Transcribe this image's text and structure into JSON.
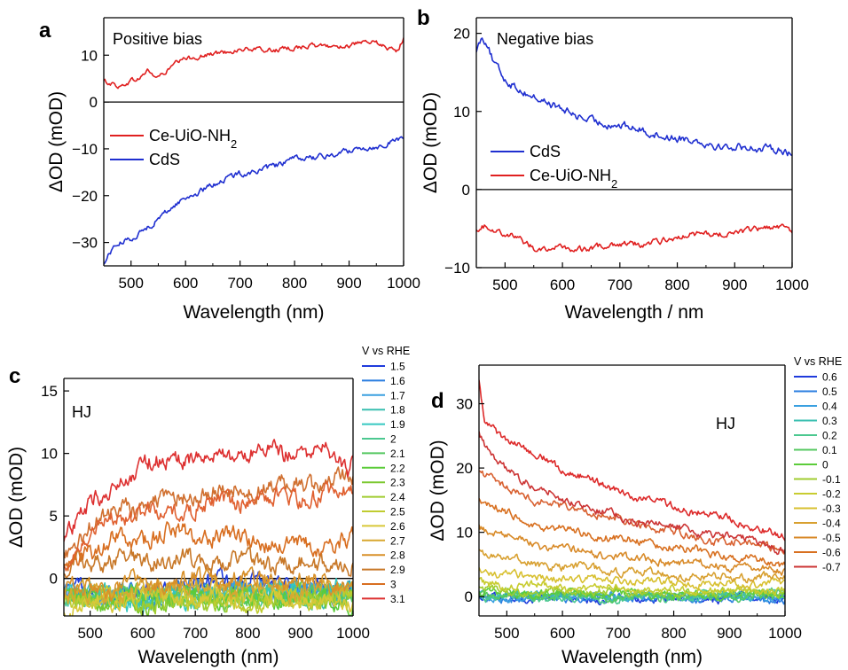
{
  "colors": {
    "red": "#e02020",
    "blue": "#1f2fd0"
  },
  "chart_data": [
    {
      "panel": "a",
      "type": "line",
      "annotation": "Positive bias",
      "xlabel": "Wavelength (nm)",
      "ylabel": "ΔOD (mOD)",
      "xlim": [
        450,
        1000
      ],
      "ylim": [
        -35,
        18
      ],
      "xticks": [
        500,
        600,
        700,
        800,
        900,
        1000
      ],
      "yticks": [
        -30,
        -20,
        -10,
        0,
        10
      ],
      "zero_line": true,
      "legend": {
        "position": "middle-left",
        "size": "large"
      },
      "series": [
        {
          "name": "Ce-UiO-NH",
          "sub": "2",
          "color": "#e02020",
          "noise": 0.25,
          "x": [
            450,
            465,
            480,
            500,
            515,
            530,
            545,
            560,
            580,
            600,
            650,
            700,
            750,
            800,
            850,
            900,
            950,
            975,
            990,
            1000
          ],
          "y": [
            4.5,
            3.8,
            3,
            4.5,
            5,
            7,
            5.5,
            6,
            8,
            9,
            10.5,
            11,
            11.2,
            11.5,
            12,
            12.2,
            12.5,
            11.5,
            11,
            14
          ]
        },
        {
          "name": "CdS",
          "color": "#1f2fd0",
          "noise": 0.3,
          "x": [
            450,
            460,
            470,
            500,
            550,
            600,
            650,
            700,
            750,
            800,
            850,
            900,
            950,
            970,
            1000
          ],
          "y": [
            -35,
            -32.5,
            -31,
            -29,
            -25,
            -20.5,
            -17.5,
            -15.5,
            -14,
            -12.5,
            -11.5,
            -10.5,
            -9.5,
            -8.5,
            -7.5
          ]
        }
      ]
    },
    {
      "panel": "b",
      "type": "line",
      "annotation": "Negative bias",
      "xlabel": "Wavelength / nm",
      "ylabel": "ΔOD (mOD)",
      "xlim": [
        450,
        1000
      ],
      "ylim": [
        -10,
        22
      ],
      "xticks": [
        500,
        600,
        700,
        800,
        900,
        1000
      ],
      "yticks": [
        -10,
        0,
        10,
        20
      ],
      "zero_line": true,
      "legend": {
        "position": "middle-left",
        "size": "large"
      },
      "series": [
        {
          "name": "CdS",
          "color": "#1f2fd0",
          "noise": 0.25,
          "x": [
            450,
            460,
            470,
            480,
            500,
            520,
            550,
            600,
            650,
            700,
            750,
            800,
            850,
            900,
            950,
            980,
            1000
          ],
          "y": [
            18,
            19.5,
            18.5,
            16,
            14,
            13.2,
            12,
            10,
            9,
            8,
            7.5,
            6.5,
            6,
            5.5,
            5,
            5.5,
            4.5
          ]
        },
        {
          "name": "Ce-UiO-NH",
          "sub": "2",
          "color": "#e02020",
          "noise": 0.2,
          "x": [
            450,
            470,
            490,
            510,
            530,
            550,
            570,
            600,
            650,
            700,
            750,
            800,
            850,
            900,
            950,
            975,
            1000
          ],
          "y": [
            -5,
            -4.8,
            -5.5,
            -5.5,
            -6.5,
            -7.5,
            -7.7,
            -7.5,
            -7.5,
            -7,
            -6.8,
            -6.2,
            -5.5,
            -5.8,
            -5,
            -4.5,
            -5.3
          ]
        }
      ]
    },
    {
      "panel": "c",
      "type": "line",
      "annotation": "HJ",
      "xlabel": "Wavelength (nm)",
      "ylabel": "ΔOD (mOD)",
      "xlim": [
        450,
        1000
      ],
      "ylim": [
        -3,
        16
      ],
      "xticks": [
        500,
        600,
        700,
        800,
        900,
        1000
      ],
      "yticks": [
        0,
        5,
        10,
        15
      ],
      "zero_line": true,
      "legend": {
        "title": "V vs RHE",
        "position": "right",
        "size": "small"
      },
      "series": [
        {
          "name": "1.5",
          "color": "#1f3bdc",
          "noise": 0.35,
          "x": [
            450,
            600,
            750,
            1000
          ],
          "y": [
            -1,
            -1.3,
            0,
            -1
          ]
        },
        {
          "name": "1.6",
          "color": "#2a7ee0",
          "noise": 0.35,
          "x": [
            450,
            600,
            750,
            1000
          ],
          "y": [
            -1.2,
            -1.5,
            -0.5,
            -1.2
          ]
        },
        {
          "name": "1.7",
          "color": "#3aa0e0",
          "noise": 0.35,
          "x": [
            450,
            600,
            750,
            1000
          ],
          "y": [
            -1,
            -1.8,
            -0.8,
            -1
          ]
        },
        {
          "name": "1.8",
          "color": "#3abfb0",
          "noise": 0.35,
          "x": [
            450,
            600,
            750,
            1000
          ],
          "y": [
            -1.5,
            -1.5,
            -1,
            -1.5
          ]
        },
        {
          "name": "1.9",
          "color": "#35c8c0",
          "noise": 0.35,
          "x": [
            450,
            600,
            750,
            1000
          ],
          "y": [
            -1,
            -2,
            -1.2,
            -0.8
          ]
        },
        {
          "name": "2",
          "color": "#4cc890",
          "noise": 0.35,
          "x": [
            450,
            600,
            750,
            1000
          ],
          "y": [
            -1.3,
            -1.7,
            -1.5,
            -1.5
          ]
        },
        {
          "name": "2.1",
          "color": "#55c860",
          "noise": 0.35,
          "x": [
            450,
            600,
            750,
            1000
          ],
          "y": [
            -1.5,
            -1.2,
            -1.8,
            -1.2
          ]
        },
        {
          "name": "2.2",
          "color": "#5ccc3a",
          "noise": 0.35,
          "x": [
            450,
            600,
            750,
            1000
          ],
          "y": [
            -1.8,
            -1.5,
            -1.5,
            -1.8
          ]
        },
        {
          "name": "2.3",
          "color": "#7cc830",
          "noise": 0.35,
          "x": [
            450,
            600,
            750,
            1000
          ],
          "y": [
            -1.2,
            -2,
            -1.2,
            -1.5
          ]
        },
        {
          "name": "2.4",
          "color": "#a0cc30",
          "noise": 0.35,
          "x": [
            450,
            600,
            750,
            1000
          ],
          "y": [
            -1.5,
            -1.8,
            -2,
            -1.2
          ]
        },
        {
          "name": "2.5",
          "color": "#c0cc30",
          "noise": 0.35,
          "x": [
            450,
            600,
            750,
            1000
          ],
          "y": [
            -2,
            -1.5,
            -1.8,
            -1.5
          ]
        },
        {
          "name": "2.6",
          "color": "#d8c838",
          "noise": 0.35,
          "x": [
            450,
            600,
            750,
            1000
          ],
          "y": [
            -2.5,
            -1.2,
            -1.5,
            -2
          ]
        },
        {
          "name": "2.7",
          "color": "#d8a830",
          "noise": 0.35,
          "x": [
            450,
            600,
            750,
            1000
          ],
          "y": [
            -1.5,
            -1,
            -0.8,
            -1
          ]
        },
        {
          "name": "2.8",
          "color": "#d89028",
          "noise": 0.35,
          "x": [
            450,
            600,
            750,
            1000
          ],
          "y": [
            -1,
            -0.5,
            0,
            -0.5
          ]
        },
        {
          "name": "2.9",
          "color": "#c87828",
          "noise": 0.35,
          "x": [
            450,
            480,
            600,
            750,
            1000
          ],
          "y": [
            0,
            1.5,
            1.5,
            1.5,
            1
          ]
        },
        {
          "name": "3",
          "color": "#d86e20",
          "noise": 0.35,
          "x": [
            450,
            480,
            550,
            650,
            750,
            900,
            1000
          ],
          "y": [
            0.5,
            2,
            3,
            3.5,
            3.5,
            2.5,
            3
          ]
        },
        {
          "name": "3",
          "color": "#d07030",
          "noise": 0.35,
          "x": [
            450,
            480,
            550,
            650,
            750,
            900,
            950,
            1000
          ],
          "y": [
            2,
            3.5,
            5.5,
            6.5,
            7,
            7.5,
            7.8,
            8
          ]
        },
        {
          "name": "3",
          "color": "#e06030",
          "noise": 0.35,
          "x": [
            450,
            480,
            550,
            650,
            750,
            900,
            1000
          ],
          "y": [
            1,
            3,
            5,
            5.5,
            6,
            6.5,
            7
          ]
        },
        {
          "name": "3.1",
          "color": "#dd3030",
          "noise": 0.35,
          "x": [
            450,
            480,
            550,
            600,
            650,
            750,
            850,
            950,
            990,
            1000
          ],
          "y": [
            3,
            5,
            7.5,
            9,
            9.5,
            10,
            10.2,
            10,
            9,
            11
          ]
        }
      ]
    },
    {
      "panel": "d",
      "type": "line",
      "annotation": "HJ",
      "xlabel": "Wavelength (nm)",
      "ylabel": "ΔOD (mOD)",
      "xlim": [
        450,
        1000
      ],
      "ylim": [
        -3,
        36
      ],
      "xticks": [
        500,
        600,
        700,
        800,
        900,
        1000
      ],
      "yticks": [
        0,
        10,
        20,
        30
      ],
      "zero_line": false,
      "legend": {
        "title": "V vs RHE",
        "position": "right",
        "size": "small"
      },
      "series": [
        {
          "name": "0.6",
          "color": "#1f3bdc",
          "noise": 0.3,
          "x": [
            450,
            700,
            1000
          ],
          "y": [
            0,
            -0.5,
            0
          ]
        },
        {
          "name": "0.5",
          "color": "#2a7ee0",
          "noise": 0.3,
          "x": [
            450,
            700,
            1000
          ],
          "y": [
            -0.5,
            0,
            -0.5
          ]
        },
        {
          "name": "0.4",
          "color": "#3aa0e0",
          "noise": 0.3,
          "x": [
            450,
            700,
            1000
          ],
          "y": [
            0,
            0.2,
            0
          ]
        },
        {
          "name": "0.3",
          "color": "#3abfb0",
          "noise": 0.3,
          "x": [
            450,
            700,
            1000
          ],
          "y": [
            0.5,
            0,
            0.2
          ]
        },
        {
          "name": "0.2",
          "color": "#4cc890",
          "noise": 0.3,
          "x": [
            450,
            700,
            1000
          ],
          "y": [
            0,
            -0.3,
            0.5
          ]
        },
        {
          "name": "0.1",
          "color": "#55c860",
          "noise": 0.3,
          "x": [
            450,
            700,
            1000
          ],
          "y": [
            0.2,
            0,
            0
          ]
        },
        {
          "name": "0",
          "color": "#5ccc3a",
          "noise": 0.3,
          "x": [
            450,
            700,
            1000
          ],
          "y": [
            0.5,
            0.3,
            0.5
          ]
        },
        {
          "name": "-0.1",
          "color": "#a0cc30",
          "noise": 0.3,
          "x": [
            450,
            600,
            800,
            1000
          ],
          "y": [
            1,
            0.8,
            0.5,
            0.8
          ]
        },
        {
          "name": "-0.2",
          "color": "#c8cc30",
          "noise": 0.3,
          "x": [
            450,
            600,
            800,
            1000
          ],
          "y": [
            2,
            1.5,
            1,
            1
          ]
        },
        {
          "name": "-0.3",
          "color": "#d8c030",
          "noise": 0.3,
          "x": [
            450,
            550,
            700,
            850,
            1000
          ],
          "y": [
            4,
            3,
            2.5,
            2,
            2
          ]
        },
        {
          "name": "-0.4",
          "color": "#d8a030",
          "noise": 0.3,
          "x": [
            450,
            550,
            700,
            850,
            1000
          ],
          "y": [
            7,
            5,
            4,
            3,
            3
          ]
        },
        {
          "name": "-0.5",
          "color": "#d88a28",
          "noise": 0.3,
          "x": [
            450,
            550,
            700,
            850,
            1000
          ],
          "y": [
            11,
            8,
            6,
            5,
            4
          ]
        },
        {
          "name": "-0.6",
          "color": "#d87020",
          "noise": 0.3,
          "x": [
            450,
            550,
            700,
            850,
            1000
          ],
          "y": [
            15,
            11,
            9,
            7,
            5
          ]
        },
        {
          "name": "-0.6",
          "color": "#d86030",
          "noise": 0.3,
          "x": [
            450,
            550,
            700,
            850,
            1000
          ],
          "y": [
            19,
            15,
            12,
            9,
            7.5
          ]
        },
        {
          "name": "-0.7",
          "color": "#cc3535",
          "noise": 0.3,
          "x": [
            450,
            470,
            550,
            650,
            750,
            850,
            950,
            1000
          ],
          "y": [
            25,
            22,
            17,
            13.5,
            11.5,
            10,
            8.5,
            7
          ]
        },
        {
          "name": "-0.7",
          "color": "#dd2a2a",
          "noise": 0.3,
          "x": [
            450,
            460,
            550,
            650,
            750,
            850,
            950,
            1000
          ],
          "y": [
            34,
            27,
            22,
            18,
            15,
            13,
            11,
            9
          ]
        }
      ]
    }
  ]
}
